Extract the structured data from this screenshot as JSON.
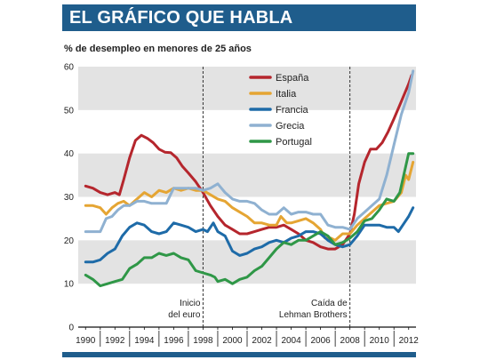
{
  "header": {
    "title": "EL GRÁFICO QUE HABLA"
  },
  "chart_data": {
    "type": "line",
    "title": "EL GRÁFICO QUE HABLA",
    "subtitle": "% de desempleo en menores de 25 años",
    "xlabel": "",
    "ylabel": "",
    "xlim": [
      1989.5,
      2012.5
    ],
    "ylim": [
      0,
      60
    ],
    "yticks": [
      0,
      10,
      20,
      30,
      40,
      50,
      60
    ],
    "xticks": [
      "1990",
      "1992",
      "1994",
      "1996",
      "1998",
      "2000",
      "2002",
      "2004",
      "2006",
      "2008",
      "2010",
      "2012"
    ],
    "grid_bands": [
      [
        10,
        20
      ],
      [
        30,
        40
      ],
      [
        50,
        60
      ]
    ],
    "legend_position": "top-center",
    "annotations": [
      {
        "x": 1998,
        "lines": [
          "Inicio",
          "del euro"
        ]
      },
      {
        "x": 2008,
        "lines": [
          "Caída de",
          "Lehman Brothers"
        ]
      }
    ],
    "series": [
      {
        "name": "España",
        "color": "#b5262d",
        "points": [
          [
            1990,
            32.5
          ],
          [
            1990.5,
            32
          ],
          [
            1991,
            31
          ],
          [
            1991.5,
            30.5
          ],
          [
            1992,
            31
          ],
          [
            1992.3,
            30.5
          ],
          [
            1992.6,
            34
          ],
          [
            1993,
            39
          ],
          [
            1993.4,
            43
          ],
          [
            1993.8,
            44.2
          ],
          [
            1994.2,
            43.5
          ],
          [
            1994.6,
            42.5
          ],
          [
            1995,
            41
          ],
          [
            1995.4,
            40.3
          ],
          [
            1995.8,
            40.2
          ],
          [
            1996.2,
            39
          ],
          [
            1996.6,
            37
          ],
          [
            1997,
            35.5
          ],
          [
            1997.5,
            33.5
          ],
          [
            1998,
            31
          ],
          [
            1998.5,
            28
          ],
          [
            1999,
            25.5
          ],
          [
            1999.5,
            23.5
          ],
          [
            2000,
            22.5
          ],
          [
            2000.5,
            21.5
          ],
          [
            2001,
            21.5
          ],
          [
            2001.5,
            22
          ],
          [
            2002,
            22.5
          ],
          [
            2002.5,
            23
          ],
          [
            2003,
            23
          ],
          [
            2003.5,
            23.5
          ],
          [
            2004,
            22.5
          ],
          [
            2004.5,
            21.5
          ],
          [
            2005,
            20
          ],
          [
            2005.5,
            19.5
          ],
          [
            2006,
            18.5
          ],
          [
            2006.5,
            18
          ],
          [
            2007,
            18
          ],
          [
            2007.5,
            19
          ],
          [
            2008,
            21.5
          ],
          [
            2008.3,
            26
          ],
          [
            2008.6,
            33
          ],
          [
            2009,
            38
          ],
          [
            2009.4,
            41
          ],
          [
            2009.8,
            41
          ],
          [
            2010.2,
            42.5
          ],
          [
            2010.6,
            45
          ],
          [
            2011,
            48
          ],
          [
            2011.5,
            52
          ],
          [
            2012,
            56
          ],
          [
            2012.2,
            58
          ]
        ]
      },
      {
        "name": "Italia",
        "color": "#e5a533",
        "points": [
          [
            1990,
            28
          ],
          [
            1990.5,
            28
          ],
          [
            1991,
            27.5
          ],
          [
            1991.4,
            26
          ],
          [
            1991.8,
            27.5
          ],
          [
            1992.2,
            28.5
          ],
          [
            1992.6,
            29
          ],
          [
            1993,
            28
          ],
          [
            1993.5,
            29.5
          ],
          [
            1994,
            31
          ],
          [
            1994.5,
            30
          ],
          [
            1995,
            31.5
          ],
          [
            1995.5,
            31
          ],
          [
            1996,
            32
          ],
          [
            1996.5,
            31.5
          ],
          [
            1997,
            32
          ],
          [
            1997.5,
            31.5
          ],
          [
            1998,
            31.5
          ],
          [
            1998.5,
            30.5
          ],
          [
            1999,
            29.5
          ],
          [
            1999.5,
            29
          ],
          [
            2000,
            27.5
          ],
          [
            2000.5,
            26.5
          ],
          [
            2001,
            25.5
          ],
          [
            2001.5,
            24
          ],
          [
            2002,
            24
          ],
          [
            2002.5,
            23.5
          ],
          [
            2003,
            23.5
          ],
          [
            2003.3,
            25.5
          ],
          [
            2003.7,
            24
          ],
          [
            2004,
            24
          ],
          [
            2004.5,
            24.5
          ],
          [
            2005,
            25
          ],
          [
            2005.5,
            24
          ],
          [
            2006,
            22.5
          ],
          [
            2006.3,
            20.5
          ],
          [
            2006.7,
            20.5
          ],
          [
            2007,
            20
          ],
          [
            2007.5,
            21.5
          ],
          [
            2008,
            21.5
          ],
          [
            2008.5,
            23.5
          ],
          [
            2009,
            25
          ],
          [
            2009.5,
            26.5
          ],
          [
            2010,
            28
          ],
          [
            2010.5,
            28.5
          ],
          [
            2011,
            29
          ],
          [
            2011.5,
            31
          ],
          [
            2011.8,
            35
          ],
          [
            2012,
            34
          ],
          [
            2012.3,
            38
          ]
        ]
      },
      {
        "name": "Francia",
        "color": "#1e6ba8",
        "points": [
          [
            1990,
            15
          ],
          [
            1990.5,
            15
          ],
          [
            1991,
            15.5
          ],
          [
            1991.5,
            17
          ],
          [
            1992,
            18
          ],
          [
            1992.5,
            21
          ],
          [
            1993,
            23
          ],
          [
            1993.5,
            24
          ],
          [
            1994,
            23.5
          ],
          [
            1994.5,
            22
          ],
          [
            1995,
            21.5
          ],
          [
            1995.5,
            22
          ],
          [
            1996,
            24
          ],
          [
            1996.5,
            23.5
          ],
          [
            1997,
            23
          ],
          [
            1997.5,
            22
          ],
          [
            1998,
            22.5
          ],
          [
            1998.3,
            22
          ],
          [
            1998.7,
            24
          ],
          [
            1999,
            22
          ],
          [
            1999.5,
            21
          ],
          [
            2000,
            17.5
          ],
          [
            2000.5,
            16.5
          ],
          [
            2001,
            17
          ],
          [
            2001.5,
            18
          ],
          [
            2002,
            18.5
          ],
          [
            2002.5,
            19.5
          ],
          [
            2003,
            20
          ],
          [
            2003.5,
            19.5
          ],
          [
            2004,
            20.5
          ],
          [
            2004.5,
            21
          ],
          [
            2005,
            22
          ],
          [
            2005.5,
            22
          ],
          [
            2006,
            21.5
          ],
          [
            2006.5,
            20
          ],
          [
            2007,
            19
          ],
          [
            2007.5,
            18.5
          ],
          [
            2008,
            19
          ],
          [
            2008.5,
            21
          ],
          [
            2009,
            23.5
          ],
          [
            2009.5,
            23.5
          ],
          [
            2010,
            23.5
          ],
          [
            2010.5,
            23
          ],
          [
            2011,
            23
          ],
          [
            2011.3,
            22
          ],
          [
            2011.7,
            24
          ],
          [
            2012,
            25.5
          ],
          [
            2012.3,
            27.5
          ]
        ]
      },
      {
        "name": "Grecia",
        "color": "#8fb1d1",
        "points": [
          [
            1990,
            22
          ],
          [
            1990.5,
            22
          ],
          [
            1991,
            22
          ],
          [
            1991.4,
            25
          ],
          [
            1991.8,
            25.5
          ],
          [
            1992.2,
            27
          ],
          [
            1992.6,
            28
          ],
          [
            1993,
            28
          ],
          [
            1993.5,
            29
          ],
          [
            1994,
            29
          ],
          [
            1994.5,
            28.5
          ],
          [
            1995,
            28.5
          ],
          [
            1995.5,
            28.5
          ],
          [
            1996,
            32
          ],
          [
            1996.5,
            32
          ],
          [
            1997,
            32
          ],
          [
            1997.5,
            32
          ],
          [
            1998,
            31.5
          ],
          [
            1998.5,
            32
          ],
          [
            1999,
            33
          ],
          [
            1999.5,
            31
          ],
          [
            2000,
            29.5
          ],
          [
            2000.5,
            29
          ],
          [
            2001,
            29
          ],
          [
            2001.5,
            28.5
          ],
          [
            2002,
            27
          ],
          [
            2002.5,
            26
          ],
          [
            2003,
            26
          ],
          [
            2003.5,
            27.5
          ],
          [
            2004,
            26
          ],
          [
            2004.5,
            26.5
          ],
          [
            2005,
            26.5
          ],
          [
            2005.5,
            26
          ],
          [
            2006,
            26
          ],
          [
            2006.5,
            23.5
          ],
          [
            2007,
            23
          ],
          [
            2007.5,
            23
          ],
          [
            2008,
            22.5
          ],
          [
            2008.5,
            25
          ],
          [
            2009,
            26.5
          ],
          [
            2009.5,
            28
          ],
          [
            2010,
            29.5
          ],
          [
            2010.5,
            35
          ],
          [
            2011,
            42
          ],
          [
            2011.5,
            49
          ],
          [
            2012,
            54
          ],
          [
            2012.3,
            59
          ]
        ]
      },
      {
        "name": "Portugal",
        "color": "#2f9747",
        "points": [
          [
            1990,
            12
          ],
          [
            1990.5,
            11
          ],
          [
            1991,
            9.5
          ],
          [
            1991.5,
            10
          ],
          [
            1992,
            10.5
          ],
          [
            1992.5,
            11
          ],
          [
            1993,
            13.5
          ],
          [
            1993.5,
            14.5
          ],
          [
            1994,
            16
          ],
          [
            1994.5,
            16
          ],
          [
            1995,
            17
          ],
          [
            1995.5,
            16.5
          ],
          [
            1996,
            17
          ],
          [
            1996.5,
            16
          ],
          [
            1997,
            15.5
          ],
          [
            1997.5,
            13
          ],
          [
            1998,
            12.5
          ],
          [
            1998.5,
            12
          ],
          [
            1998.8,
            11.5
          ],
          [
            1999,
            10.5
          ],
          [
            1999.5,
            11
          ],
          [
            2000,
            10
          ],
          [
            2000.5,
            11
          ],
          [
            2001,
            11.5
          ],
          [
            2001.5,
            13
          ],
          [
            2002,
            14
          ],
          [
            2002.5,
            16
          ],
          [
            2003,
            18
          ],
          [
            2003.5,
            19.5
          ],
          [
            2004,
            19
          ],
          [
            2004.5,
            20
          ],
          [
            2005,
            20
          ],
          [
            2005.5,
            21
          ],
          [
            2006,
            22
          ],
          [
            2006.5,
            21
          ],
          [
            2007,
            19
          ],
          [
            2007.5,
            19.5
          ],
          [
            2008,
            20.5
          ],
          [
            2008.5,
            22
          ],
          [
            2009,
            24.5
          ],
          [
            2009.5,
            25
          ],
          [
            2010,
            27
          ],
          [
            2010.5,
            29.5
          ],
          [
            2011,
            29
          ],
          [
            2011.4,
            31
          ],
          [
            2011.8,
            37
          ],
          [
            2012,
            40
          ],
          [
            2012.3,
            40
          ]
        ]
      }
    ]
  }
}
